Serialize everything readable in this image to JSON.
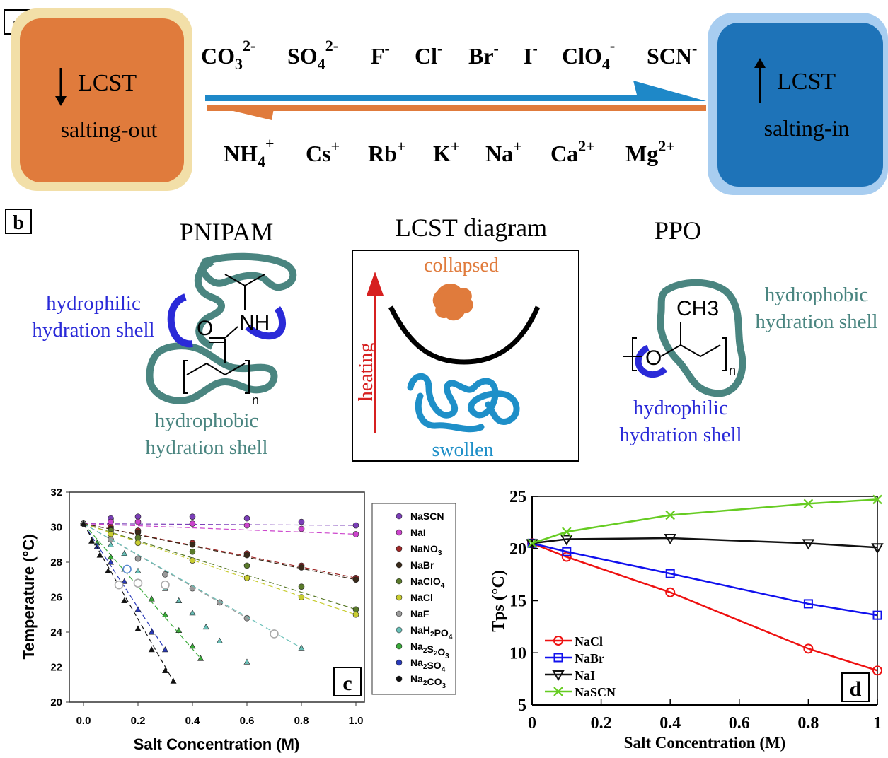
{
  "panel_a": {
    "label": "a",
    "left_box": {
      "title": "LCST",
      "subtitle": "salting-out",
      "color": "#e07b3c"
    },
    "right_box": {
      "title": "LCST",
      "subtitle": "salting-in",
      "color": "#1e73b8"
    },
    "anions": [
      {
        "base": "CO",
        "sub": "3",
        "sup": "2-"
      },
      {
        "base": "SO",
        "sub": "4",
        "sup": "2-"
      },
      {
        "base": "F",
        "sub": "",
        "sup": "-"
      },
      {
        "base": "Cl",
        "sub": "",
        "sup": "-"
      },
      {
        "base": "Br",
        "sub": "",
        "sup": "-"
      },
      {
        "base": "I",
        "sub": "",
        "sup": "-"
      },
      {
        "base": "ClO",
        "sub": "4",
        "sup": "-"
      },
      {
        "base": "SCN",
        "sub": "",
        "sup": "-"
      }
    ],
    "cations": [
      {
        "base": "NH",
        "sub": "4",
        "sup": "+"
      },
      {
        "base": "Cs",
        "sub": "",
        "sup": "+"
      },
      {
        "base": "Rb",
        "sub": "",
        "sup": "+"
      },
      {
        "base": "K",
        "sub": "",
        "sup": "+"
      },
      {
        "base": "Na",
        "sub": "",
        "sup": "+"
      },
      {
        "base": "Ca",
        "sub": "",
        "sup": "2+"
      },
      {
        "base": "Mg",
        "sub": "",
        "sup": "2+"
      }
    ]
  },
  "panel_b": {
    "label": "b",
    "pnipam": {
      "title": "PNIPAM",
      "hydrophilic": [
        "hydrophilic",
        "hydration shell"
      ],
      "hydrophobic": [
        "hydrophobic",
        "hydration shell"
      ],
      "atoms": {
        "o": "O",
        "nh": "NH",
        "n": "n"
      }
    },
    "diagram": {
      "title": "LCST diagram",
      "top": "collapsed",
      "bottom": "swollen",
      "arrow": "heating"
    },
    "ppo": {
      "title": "PPO",
      "hydrophobic": [
        "hydrophobic",
        "hydration shell"
      ],
      "hydrophilic": [
        "hydrophilic",
        "hydration shell"
      ],
      "atoms": {
        "o": "O",
        "ch3": "CH3",
        "n": "n"
      }
    },
    "colors": {
      "teal": "#4a8580",
      "blue": "#2a2ad8",
      "orange": "#e07b3c",
      "swollen": "#1e8fc8",
      "heating": "#d62020"
    }
  },
  "chart_data": [
    {
      "type": "scatter",
      "panel_label": "c",
      "xlabel": "Salt Concentration (M)",
      "ylabel": "Temperature (°C)",
      "xlim": [
        0,
        1.0
      ],
      "ylim": [
        20,
        32
      ],
      "xticks": [
        "0.0",
        "0.2",
        "0.4",
        "0.6",
        "0.8",
        "1.0"
      ],
      "yticks": [
        "20",
        "22",
        "24",
        "26",
        "28",
        "30",
        "32"
      ],
      "legend_position": "right-outside",
      "series": [
        {
          "name": "NaSCN",
          "color": "#7b3fb8",
          "marker": "circle",
          "x": [
            0,
            0.1,
            0.2,
            0.4,
            0.6,
            0.8,
            1.0
          ],
          "y": [
            30.2,
            30.5,
            30.6,
            30.6,
            30.5,
            30.3,
            30.1
          ]
        },
        {
          "name": "NaI",
          "color": "#cc44cc",
          "marker": "circle",
          "x": [
            0,
            0.1,
            0.2,
            0.4,
            0.6,
            0.8,
            1.0
          ],
          "y": [
            30.2,
            30.3,
            30.3,
            30.2,
            30.1,
            29.9,
            29.6
          ]
        },
        {
          "name": "NaNO3",
          "color": "#a02828",
          "marker": "circle",
          "x": [
            0,
            0.1,
            0.2,
            0.4,
            0.6,
            0.8,
            1.0
          ],
          "y": [
            30.2,
            30.0,
            29.8,
            29.1,
            28.5,
            27.8,
            27.1
          ]
        },
        {
          "name": "NaBr",
          "color": "#3a2a1a",
          "marker": "circle",
          "x": [
            0,
            0.1,
            0.2,
            0.4,
            0.6,
            0.8,
            1.0
          ],
          "y": [
            30.2,
            29.9,
            29.7,
            29.0,
            28.4,
            27.7,
            27.0
          ]
        },
        {
          "name": "NaClO4",
          "color": "#5a7a2a",
          "marker": "circle",
          "x": [
            0,
            0.1,
            0.2,
            0.4,
            0.6,
            0.8,
            1.0
          ],
          "y": [
            30.2,
            29.8,
            29.4,
            28.6,
            27.8,
            26.6,
            25.3
          ]
        },
        {
          "name": "NaCl",
          "color": "#c8cc30",
          "marker": "circle",
          "x": [
            0,
            0.1,
            0.2,
            0.4,
            0.6,
            0.8,
            1.0
          ],
          "y": [
            30.2,
            29.6,
            29.1,
            28.1,
            27.1,
            26.0,
            25.0
          ]
        },
        {
          "name": "NaF",
          "color": "#9a9a9a",
          "marker": "circle",
          "x": [
            0,
            0.1,
            0.2,
            0.3,
            0.4,
            0.5,
            0.6
          ],
          "y": [
            30.2,
            29.3,
            28.2,
            27.3,
            26.5,
            25.7,
            24.8
          ]
        },
        {
          "name": "NaH2PO4",
          "color": "#6ac0b8",
          "marker": "triangle",
          "x": [
            0,
            0.1,
            0.15,
            0.2,
            0.3,
            0.35,
            0.4,
            0.45,
            0.5,
            0.6,
            0.8
          ],
          "y": [
            30.2,
            29.0,
            28.5,
            27.5,
            26.5,
            25.8,
            25.1,
            24.3,
            23.5,
            22.3,
            23.1
          ]
        },
        {
          "name": "Na2S2O3",
          "color": "#3aaa3a",
          "marker": "triangle",
          "x": [
            0,
            0.05,
            0.1,
            0.15,
            0.2,
            0.25,
            0.3,
            0.35,
            0.4,
            0.43
          ],
          "y": [
            30.2,
            29.1,
            28.3,
            27.6,
            26.8,
            25.9,
            25.0,
            24.1,
            23.2,
            22.5
          ]
        },
        {
          "name": "Na2SO4",
          "color": "#2a3ab8",
          "marker": "triangle",
          "x": [
            0,
            0.05,
            0.1,
            0.15,
            0.2,
            0.25,
            0.3
          ],
          "y": [
            30.2,
            28.9,
            28.0,
            26.9,
            25.3,
            24.0,
            23.0
          ]
        },
        {
          "name": "Na2CO3",
          "color": "#111111",
          "marker": "triangle",
          "x": [
            0,
            0.03,
            0.06,
            0.09,
            0.15,
            0.2,
            0.25,
            0.3,
            0.33
          ],
          "y": [
            30.2,
            29.2,
            28.4,
            27.5,
            25.8,
            24.2,
            23.0,
            21.8,
            21.2
          ]
        }
      ],
      "open_circles": {
        "color": "#aaaaaa",
        "x": [
          0.13,
          0.2,
          0.3,
          0.7
        ],
        "y": [
          26.7,
          26.8,
          26.7,
          23.9
        ]
      },
      "open_circle_blue": {
        "color": "#5a8ad0",
        "x": [
          0.16
        ],
        "y": [
          27.6
        ]
      }
    },
    {
      "type": "line",
      "panel_label": "d",
      "xlabel": "Salt Concentration (M)",
      "ylabel": "Tps (°C)",
      "xlim": [
        0,
        1
      ],
      "ylim": [
        5,
        25
      ],
      "xticks": [
        "0",
        "0.2",
        "0.4",
        "0.6",
        "0.8",
        "1"
      ],
      "yticks": [
        "5",
        "10",
        "15",
        "20",
        "25"
      ],
      "legend_position": "bottom-left",
      "series": [
        {
          "name": "NaCl",
          "color": "#ee1111",
          "marker": "circle",
          "x": [
            0,
            0.1,
            0.4,
            0.8,
            1.0
          ],
          "y": [
            20.5,
            19.2,
            15.8,
            10.4,
            8.3
          ]
        },
        {
          "name": "NaBr",
          "color": "#1111ee",
          "marker": "square",
          "x": [
            0,
            0.1,
            0.4,
            0.8,
            1.0
          ],
          "y": [
            20.5,
            19.7,
            17.6,
            14.7,
            13.6
          ]
        },
        {
          "name": "NaI",
          "color": "#111111",
          "marker": "triangle-down",
          "x": [
            0,
            0.1,
            0.4,
            0.8,
            1.0
          ],
          "y": [
            20.5,
            20.9,
            21.0,
            20.5,
            20.1
          ]
        },
        {
          "name": "NaSCN",
          "color": "#66cc22",
          "marker": "x",
          "x": [
            0,
            0.1,
            0.4,
            0.8,
            1.0
          ],
          "y": [
            20.5,
            21.6,
            23.2,
            24.3,
            24.7
          ]
        }
      ]
    }
  ]
}
